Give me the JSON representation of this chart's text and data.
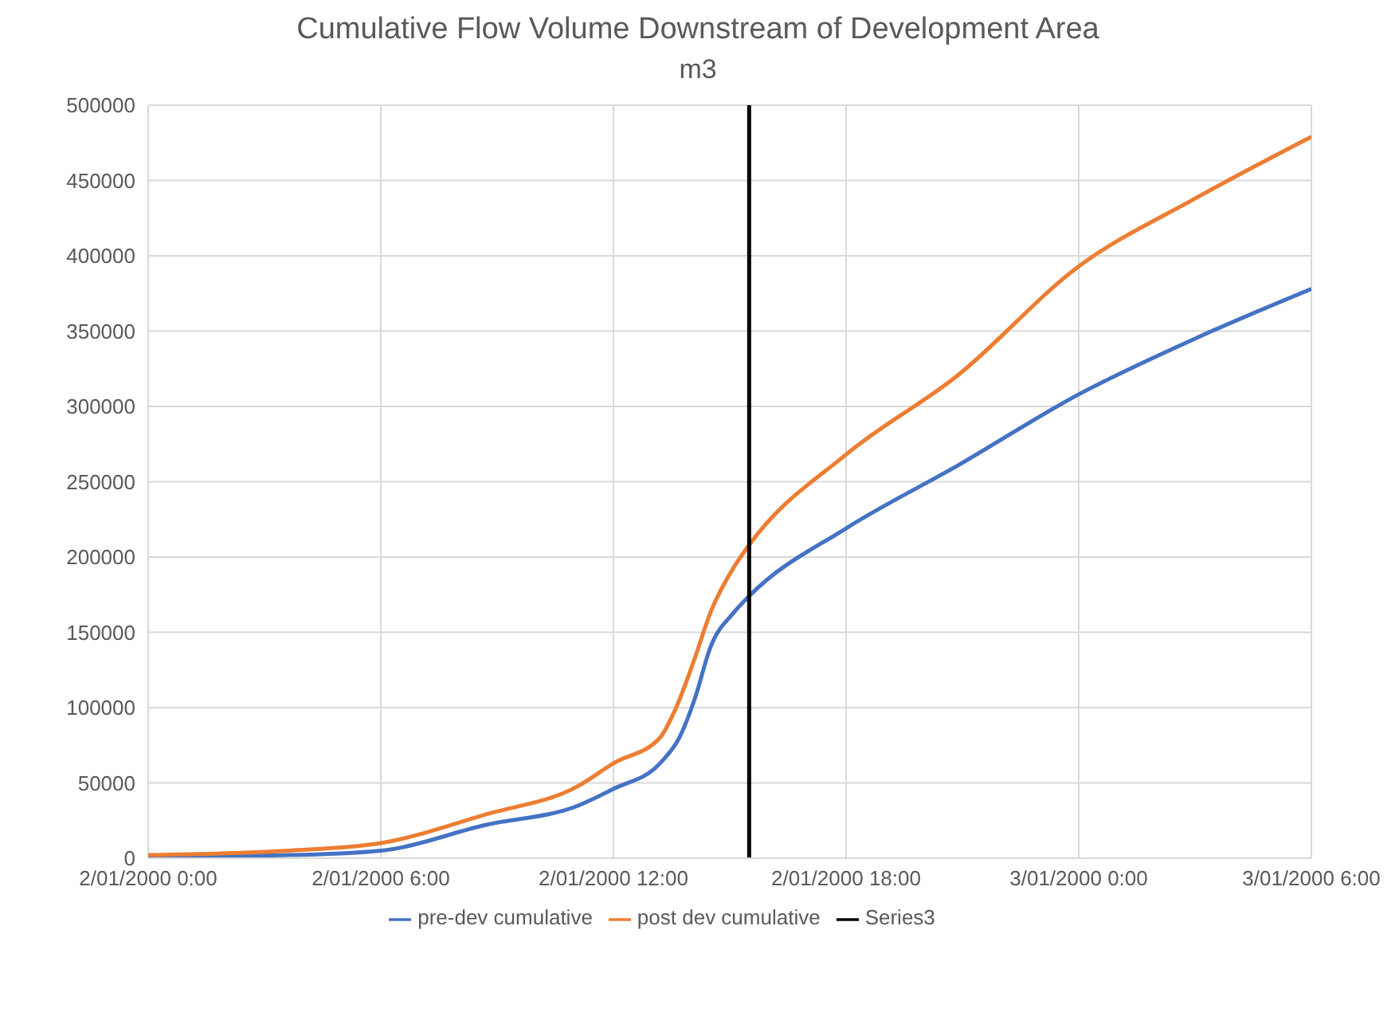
{
  "chart_data": {
    "type": "line",
    "title": "Cumulative Flow Volume Downstream of Development Area",
    "subtitle": "m3",
    "xlim": [
      "2000-01-02T00:00",
      "2000-01-03T06:00"
    ],
    "xticks": [
      {
        "value": "2000-01-02T00:00",
        "label": "2/01/2000 0:00"
      },
      {
        "value": "2000-01-02T06:00",
        "label": "2/01/2000 6:00"
      },
      {
        "value": "2000-01-02T12:00",
        "label": "2/01/2000 12:00"
      },
      {
        "value": "2000-01-02T18:00",
        "label": "2/01/2000 18:00"
      },
      {
        "value": "2000-01-03T00:00",
        "label": "3/01/2000 0:00"
      },
      {
        "value": "2000-01-03T06:00",
        "label": "3/01/2000 6:00"
      }
    ],
    "ylim": [
      0,
      500000
    ],
    "yticks": [
      0,
      50000,
      100000,
      150000,
      200000,
      250000,
      300000,
      350000,
      400000,
      450000,
      500000
    ],
    "grid": true,
    "legend": "bottom",
    "marker": "none",
    "line_style": "solid",
    "series": [
      {
        "name": "pre-dev cumulative",
        "color": "#4472c4",
        "x": [
          "2000-01-02T00:00",
          "2000-01-02T03:36",
          "2000-01-02T06:00",
          "2000-01-02T08:42",
          "2000-01-02T11:06",
          "2000-01-02T12:00",
          "2000-01-02T13:12",
          "2000-01-02T13:42",
          "2000-01-02T14:06",
          "2000-01-02T14:30",
          "2000-01-02T15:06",
          "2000-01-02T15:30",
          "2000-01-02T18:00",
          "2000-01-02T20:54",
          "2000-01-03T00:00",
          "2000-01-03T03:00",
          "2000-01-03T06:00"
        ],
        "values": [
          1000,
          2000,
          5000,
          22000,
          35000,
          46000,
          63000,
          80000,
          106000,
          140000,
          163000,
          174000,
          219000,
          261000,
          308000,
          345000,
          378000
        ]
      },
      {
        "name": "post dev cumulative",
        "color": "#ed7d31",
        "x": [
          "2000-01-02T00:00",
          "2000-01-02T03:36",
          "2000-01-02T06:00",
          "2000-01-02T08:42",
          "2000-01-02T11:06",
          "2000-01-02T12:00",
          "2000-01-02T13:12",
          "2000-01-02T13:36",
          "2000-01-02T14:06",
          "2000-01-02T14:30",
          "2000-01-02T15:06",
          "2000-01-02T15:30",
          "2000-01-02T18:00",
          "2000-01-02T20:54",
          "2000-01-03T00:00",
          "2000-01-03T03:00",
          "2000-01-03T06:00"
        ],
        "values": [
          2000,
          5000,
          10000,
          29000,
          48000,
          63000,
          80000,
          99000,
          133000,
          163000,
          193000,
          208000,
          268000,
          321000,
          393000,
          438000,
          479000
        ]
      },
      {
        "name": "Series3",
        "color": "#000000",
        "x": [
          "2000-01-02T15:30",
          "2000-01-02T15:30"
        ],
        "values": [
          0,
          500000
        ]
      }
    ]
  }
}
